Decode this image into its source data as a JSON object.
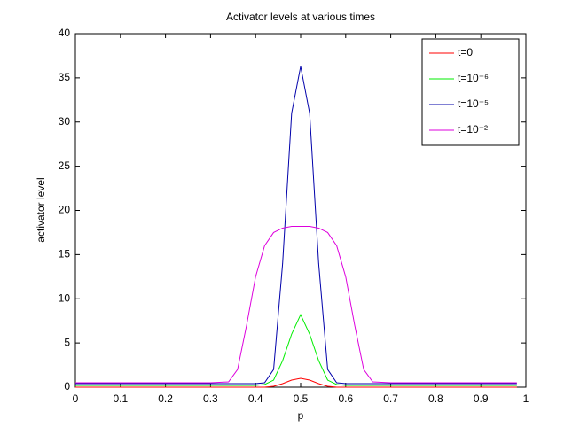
{
  "chart_data": {
    "type": "line",
    "title": "Activator levels at various times",
    "xlabel": "p",
    "ylabel": "activator level",
    "x": [
      0,
      0.3,
      0.34,
      0.36,
      0.38,
      0.4,
      0.42,
      0.44,
      0.46,
      0.48,
      0.5,
      0.52,
      0.54,
      0.56,
      0.58,
      0.6,
      0.62,
      0.64,
      0.66,
      0.7,
      0.98
    ],
    "series": [
      {
        "name": "t=0",
        "color": "#ff0000",
        "values": [
          0,
          0,
          0,
          0,
          0,
          0,
          0,
          0.1,
          0.4,
          0.8,
          1.0,
          0.8,
          0.4,
          0.1,
          0,
          0,
          0,
          0,
          0,
          0,
          0
        ]
      },
      {
        "name": "t=10⁻⁶",
        "color": "#00ee00",
        "values": [
          0.2,
          0.2,
          0.2,
          0.2,
          0.2,
          0.2,
          0.3,
          0.8,
          3,
          6,
          8.2,
          6,
          3,
          0.8,
          0.3,
          0.2,
          0.2,
          0.2,
          0.2,
          0.2,
          0.2
        ]
      },
      {
        "name": "t=10⁻⁵",
        "color": "#0000aa",
        "values": [
          0.4,
          0.4,
          0.4,
          0.4,
          0.4,
          0.4,
          0.5,
          2,
          14,
          31,
          36.3,
          31,
          14,
          2,
          0.5,
          0.4,
          0.4,
          0.4,
          0.4,
          0.4,
          0.4
        ]
      },
      {
        "name": "t=10⁻²",
        "color": "#dd00dd",
        "values": [
          0.5,
          0.5,
          0.6,
          2,
          7,
          12.5,
          16,
          17.5,
          18,
          18.2,
          18.2,
          18.2,
          18,
          17.5,
          16,
          12.5,
          7,
          2,
          0.6,
          0.5,
          0.5
        ]
      }
    ],
    "xlim": [
      0,
      1
    ],
    "xticks": [
      0,
      0.1,
      0.2,
      0.3,
      0.4,
      0.5,
      0.6,
      0.7,
      0.8,
      0.9,
      1
    ],
    "ylim": [
      0,
      40
    ],
    "yticks": [
      0,
      5,
      10,
      15,
      20,
      25,
      30,
      35,
      40
    ],
    "grid": false,
    "legend": "upper right"
  }
}
